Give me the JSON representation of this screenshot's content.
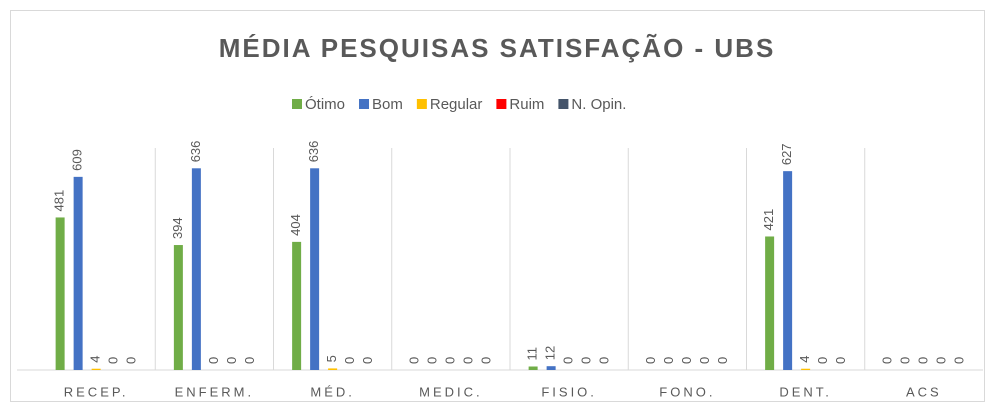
{
  "chart_data": {
    "type": "bar",
    "title": "MÉDIA PESQUISAS SATISFAÇÃO - UBS",
    "categories": [
      "RECEP.",
      "ENFERM.",
      "MÉD.",
      "MEDIC.",
      "FISIO.",
      "FONO.",
      "DENT.",
      "ACS"
    ],
    "series": [
      {
        "name": "Ótimo",
        "color": "#70ad47",
        "values": [
          481,
          394,
          404,
          0,
          11,
          0,
          421,
          0
        ]
      },
      {
        "name": "Bom",
        "color": "#4472c4",
        "values": [
          609,
          636,
          636,
          0,
          12,
          0,
          627,
          0
        ]
      },
      {
        "name": "Regular",
        "color": "#ffc000",
        "values": [
          4,
          0,
          5,
          0,
          0,
          0,
          4,
          0
        ]
      },
      {
        "name": "Ruim",
        "color": "#ff0000",
        "values": [
          0,
          0,
          0,
          0,
          0,
          0,
          0,
          0
        ]
      },
      {
        "name": "N. Opin.",
        "color": "#44546a",
        "values": [
          0,
          0,
          0,
          0,
          0,
          0,
          0,
          0
        ]
      }
    ],
    "ylim": [
      0,
      700
    ],
    "legend": "top"
  }
}
